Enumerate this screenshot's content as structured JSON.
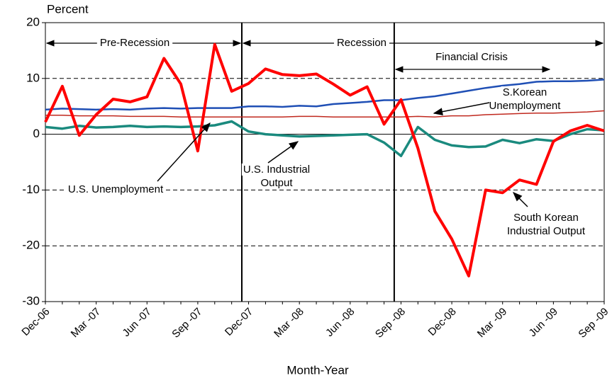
{
  "chart_data": {
    "type": "line",
    "y_label": "Percent",
    "x_label": "Month-Year",
    "categories": [
      "Dec-06",
      null,
      null,
      "Mar -07",
      null,
      null,
      "Jun -07",
      null,
      null,
      "Sep -07",
      null,
      null,
      "Dec-07",
      null,
      null,
      "Mar -08",
      null,
      null,
      "Jun -08",
      null,
      null,
      "Sep -08",
      null,
      null,
      "Dec-08",
      null,
      null,
      "Mar -09",
      null,
      null,
      "Jun -09",
      null,
      null,
      "Sep -09"
    ],
    "series": [
      {
        "name": "South Korean Industrial Output",
        "color": "#ff0000",
        "values": [
          2.2,
          8.6,
          -0.2,
          3.5,
          6.3,
          5.8,
          6.7,
          13.6,
          9,
          -3,
          16.1,
          7.7,
          9.1,
          11.7,
          10.7,
          10.5,
          10.8,
          9,
          7,
          8.5,
          1.8,
          6.2,
          -2.5,
          -13.8,
          -18.8,
          -25.4,
          -10,
          -10.5,
          -8.2,
          -9,
          -1.3,
          0.6,
          1.6,
          0.6
        ]
      },
      {
        "name": "U.S. Unemployment",
        "color": "#1f4fb5",
        "values": [
          4.4,
          4.6,
          4.5,
          4.4,
          4.5,
          4.4,
          4.6,
          4.7,
          4.6,
          4.7,
          4.7,
          4.7,
          5.0,
          5.0,
          4.9,
          5.1,
          5.0,
          5.4,
          5.6,
          5.8,
          6.1,
          6.1,
          6.5,
          6.8,
          7.3,
          7.8,
          8.3,
          8.7,
          9.0,
          9.4,
          9.5,
          9.5,
          9.6,
          9.8
        ]
      },
      {
        "name": "S.Korean Unemployment",
        "color": "#c0281e",
        "values": [
          3.4,
          3.4,
          3.3,
          3.3,
          3.3,
          3.2,
          3.2,
          3.2,
          3.1,
          3.1,
          3.1,
          3.1,
          3.1,
          3.1,
          3.1,
          3.2,
          3.2,
          3.1,
          3.1,
          3.1,
          3.1,
          3.1,
          3.2,
          3.1,
          3.3,
          3.3,
          3.5,
          3.6,
          3.7,
          3.8,
          3.8,
          3.9,
          4.0,
          4.2
        ]
      },
      {
        "name": "U.S. Industrial Output",
        "color": "#1a8a7e",
        "values": [
          1.3,
          1.0,
          1.5,
          1.2,
          1.3,
          1.5,
          1.3,
          1.4,
          1.3,
          1.4,
          1.6,
          2.3,
          0.5,
          0,
          -0.2,
          -0.4,
          -0.3,
          -0.2,
          -0.1,
          0,
          -1.5,
          -3.9,
          1.3,
          -1.0,
          -2.0,
          -2.3,
          -2.2,
          -1.0,
          -1.6,
          -0.9,
          -1.2,
          0,
          0.9,
          0.7
        ]
      }
    ],
    "ylim": [
      -30,
      20
    ],
    "yticks": [
      -30,
      -20,
      -10,
      0,
      10,
      20
    ],
    "grid": true,
    "periods": [
      "Pre-Recession",
      "Recession",
      "Financial Crisis"
    ],
    "annotations": [
      [
        "U.S. Unemployment"
      ],
      [
        "U.S. Industrial",
        "Output"
      ],
      [
        "S.Korean",
        "Unemployment"
      ],
      [
        "South Korean",
        "Industrial Output"
      ]
    ]
  }
}
